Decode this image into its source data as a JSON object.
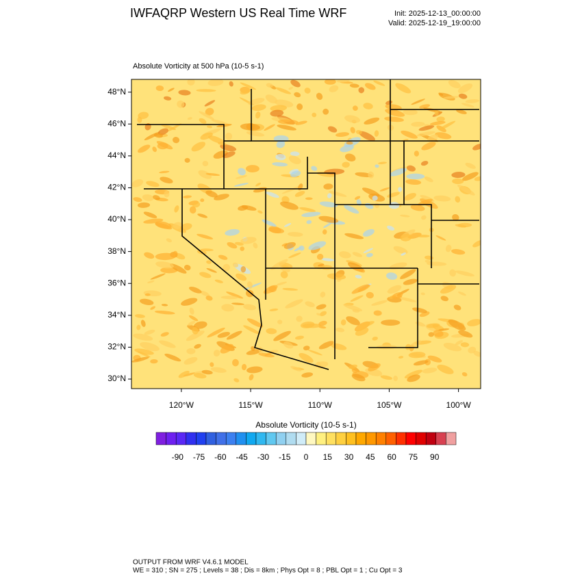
{
  "header": {
    "title": "IWFAQRP Western US Real Time WRF",
    "init": "Init: 2025-12-13_00:00:00",
    "valid": "Valid: 2025-12-19_19:00:00"
  },
  "chart_data": {
    "type": "map",
    "subtitle": "Absolute Vorticity at 500 hPa   (10-5 s-1)",
    "xlim": [
      -123.6,
      -98.4
    ],
    "ylim": [
      29.4,
      48.8
    ],
    "xticks": [
      {
        "value": -120,
        "label": "120°W"
      },
      {
        "value": -115,
        "label": "115°W"
      },
      {
        "value": -110,
        "label": "110°W"
      },
      {
        "value": -105,
        "label": "105°W"
      },
      {
        "value": -100,
        "label": "100°W"
      }
    ],
    "yticks": [
      {
        "value": 30,
        "label": "30°N"
      },
      {
        "value": 32,
        "label": "32°N"
      },
      {
        "value": 34,
        "label": "34°N"
      },
      {
        "value": 36,
        "label": "36°N"
      },
      {
        "value": 38,
        "label": "38°N"
      },
      {
        "value": 40,
        "label": "40°N"
      },
      {
        "value": 42,
        "label": "42°N"
      },
      {
        "value": 44,
        "label": "44°N"
      },
      {
        "value": 46,
        "label": "46°N"
      },
      {
        "value": 48,
        "label": "48°N"
      }
    ],
    "colorbar": {
      "title": "Absolute Vorticity  (10-5 s-1)",
      "lim": [
        -105,
        105
      ],
      "ticks": [
        -90,
        -75,
        -60,
        -45,
        -30,
        -15,
        0,
        15,
        30,
        45,
        60,
        75,
        90
      ],
      "colors": [
        "#7f1fe0",
        "#6e20f0",
        "#5a28f5",
        "#3030f0",
        "#2040f0",
        "#3060e0",
        "#4070e8",
        "#3c80f0",
        "#2090f0",
        "#10a8f0",
        "#30b8f0",
        "#60c8f0",
        "#90d0f0",
        "#b0dcf0",
        "#d0ecf8",
        "#fff8c0",
        "#fff080",
        "#ffe060",
        "#ffd040",
        "#ffc020",
        "#ffa800",
        "#ff9800",
        "#ff8000",
        "#ff6000",
        "#ff3000",
        "#ff0000",
        "#e00000",
        "#c00010",
        "#d84050",
        "#f0a0a0"
      ]
    }
  },
  "footer": {
    "line1": "OUTPUT FROM WRF V4.6.1 MODEL",
    "line2": "WE = 310 ; SN = 275 ; Levels = 38 ; Dis = 8km ; Phys Opt = 8 ; PBL Opt = 1 ; Cu Opt = 3"
  }
}
